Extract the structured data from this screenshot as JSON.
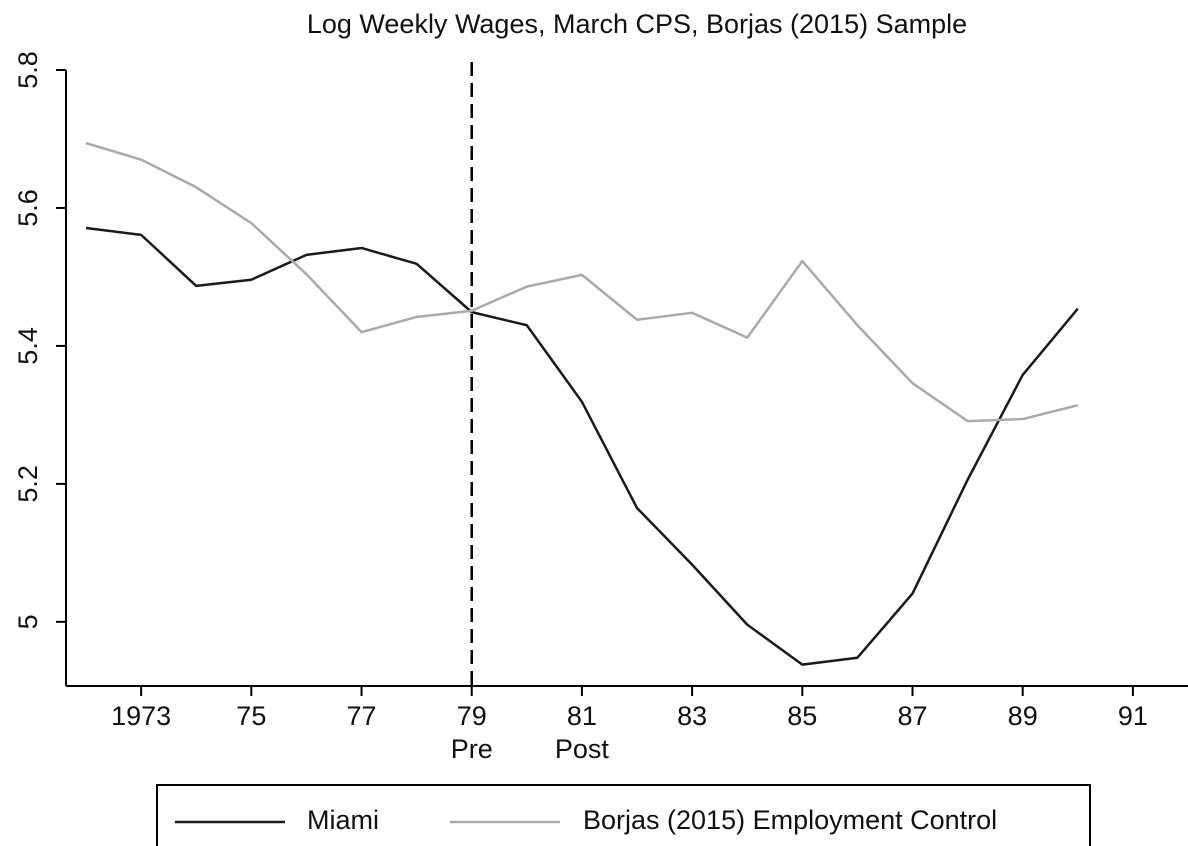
{
  "chart_data": {
    "type": "line",
    "title": "Log Weekly Wages, March CPS, Borjas (2015) Sample",
    "x": [
      1972,
      1973,
      1974,
      1975,
      1976,
      1977,
      1978,
      1979,
      1980,
      1981,
      1982,
      1983,
      1984,
      1985,
      1986,
      1987,
      1988,
      1989,
      1990
    ],
    "series": [
      {
        "name": "Miami",
        "color": "#1a1a1a",
        "values": [
          5.571,
          5.561,
          5.487,
          5.496,
          5.532,
          5.542,
          5.519,
          5.449,
          5.43,
          5.319,
          5.165,
          5.083,
          4.996,
          4.938,
          4.948,
          5.041,
          5.206,
          5.358,
          5.454
        ]
      },
      {
        "name": "Borjas (2015) Employment Control",
        "color": "#aaaaaa",
        "values": [
          5.694,
          5.67,
          5.63,
          5.578,
          5.504,
          5.42,
          5.442,
          5.451,
          5.486,
          5.503,
          5.438,
          5.448,
          5.412,
          5.523,
          5.43,
          5.346,
          5.291,
          5.294,
          5.314
        ]
      }
    ],
    "xlim": [
      1971.6,
      1992
    ],
    "xticks": [
      1973,
      {
        "value": 1975,
        "label": "75"
      },
      {
        "value": 1977,
        "label": "77"
      },
      {
        "value": 1979,
        "label": "79"
      },
      {
        "value": 1981,
        "label": "81"
      },
      {
        "value": 1983,
        "label": "83"
      },
      {
        "value": 1985,
        "label": "85"
      },
      {
        "value": 1987,
        "label": "87"
      },
      {
        "value": 1989,
        "label": "89"
      },
      {
        "value": 1991,
        "label": "91"
      }
    ],
    "ylim": [
      4.907,
      5.8
    ],
    "yticks": [
      5,
      5.2,
      5.4,
      5.6,
      5.8
    ],
    "vline": 1979,
    "annotations": [
      {
        "text": "Pre",
        "x": 1979
      },
      {
        "text": "Post",
        "x": 1981
      }
    ],
    "legend": "bottom"
  }
}
